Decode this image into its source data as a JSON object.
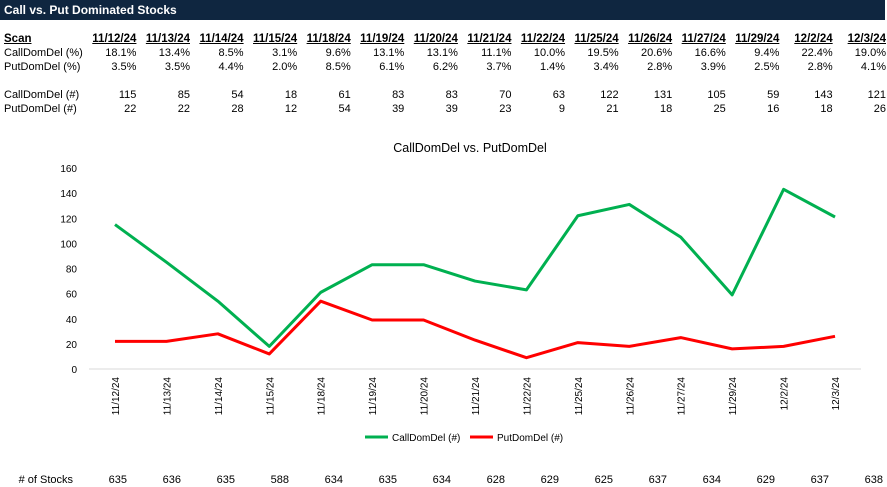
{
  "title": "Call vs. Put Dominated Stocks",
  "table": {
    "scan_label": "Scan",
    "dates": [
      "11/12/24",
      "11/13/24",
      "11/14/24",
      "11/15/24",
      "11/18/24",
      "11/19/24",
      "11/20/24",
      "11/21/24",
      "11/22/24",
      "11/25/24",
      "11/26/24",
      "11/27/24",
      "11/29/24",
      "12/2/24",
      "12/3/24"
    ],
    "rows": [
      {
        "label": "CallDomDel (%)",
        "values": [
          "18.1%",
          "13.4%",
          "8.5%",
          "3.1%",
          "9.6%",
          "13.1%",
          "13.1%",
          "11.1%",
          "10.0%",
          "19.5%",
          "20.6%",
          "16.6%",
          "9.4%",
          "22.4%",
          "19.0%"
        ]
      },
      {
        "label": "PutDomDel (%)",
        "values": [
          "3.5%",
          "3.5%",
          "4.4%",
          "2.0%",
          "8.5%",
          "6.1%",
          "6.2%",
          "3.7%",
          "1.4%",
          "3.4%",
          "2.8%",
          "3.9%",
          "2.5%",
          "2.8%",
          "4.1%"
        ]
      },
      {
        "label": "CallDomDel (#)",
        "values": [
          "115",
          "85",
          "54",
          "18",
          "61",
          "83",
          "83",
          "70",
          "63",
          "122",
          "131",
          "105",
          "59",
          "143",
          "121"
        ]
      },
      {
        "label": "PutDomDel (#)",
        "values": [
          "22",
          "22",
          "28",
          "12",
          "54",
          "39",
          "39",
          "23",
          "9",
          "21",
          "18",
          "25",
          "16",
          "18",
          "26"
        ]
      }
    ],
    "stocks_label": "# of Stocks",
    "stocks": [
      "635",
      "636",
      "635",
      "588",
      "634",
      "635",
      "634",
      "628",
      "629",
      "625",
      "637",
      "634",
      "629",
      "637",
      "638"
    ]
  },
  "chart_data": {
    "type": "line",
    "title": "CallDomDel vs. PutDomDel",
    "categories": [
      "11/12/24",
      "11/13/24",
      "11/14/24",
      "11/15/24",
      "11/18/24",
      "11/19/24",
      "11/20/24",
      "11/21/24",
      "11/22/24",
      "11/25/24",
      "11/26/24",
      "11/27/24",
      "11/29/24",
      "12/2/24",
      "12/3/24"
    ],
    "series": [
      {
        "name": "CallDomDel (#)",
        "color": "#00b050",
        "values": [
          115,
          85,
          54,
          18,
          61,
          83,
          83,
          70,
          63,
          122,
          131,
          105,
          59,
          143,
          121
        ]
      },
      {
        "name": "PutDomDel (#)",
        "color": "#ff0000",
        "values": [
          22,
          22,
          28,
          12,
          54,
          39,
          39,
          23,
          9,
          21,
          18,
          25,
          16,
          18,
          26
        ]
      }
    ],
    "ylim": [
      0,
      160
    ],
    "yticks": [
      "0",
      "20",
      "40",
      "60",
      "80",
      "100",
      "120",
      "140",
      "160"
    ],
    "legend": "bottom",
    "grid": false
  }
}
